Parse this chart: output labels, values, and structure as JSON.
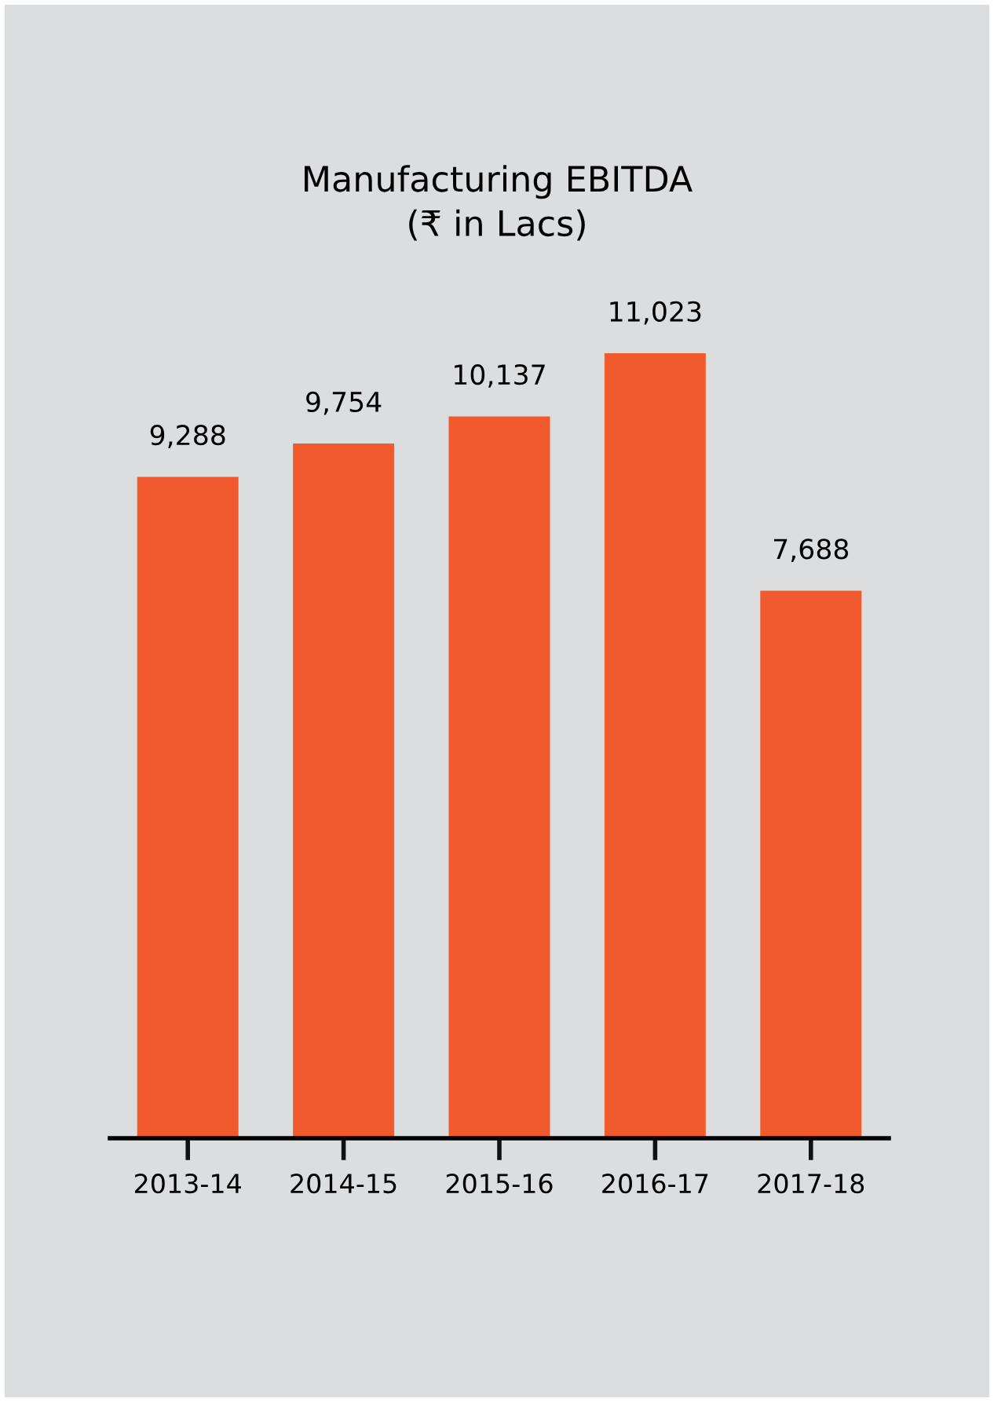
{
  "chart_data": {
    "type": "bar",
    "title": "Manufacturing EBITDA\n(₹ in Lacs)",
    "categories": [
      "2013-14",
      "2014-15",
      "2015-16",
      "2016-17",
      "2017-18"
    ],
    "values": [
      9288,
      9754,
      10137,
      11023,
      7688
    ],
    "color": "#f15a2c",
    "data_labels": true,
    "value_labels": [
      "9,288",
      "9,754",
      "10,137",
      "11,023",
      "7,688"
    ],
    "grid": false,
    "legend": false
  }
}
